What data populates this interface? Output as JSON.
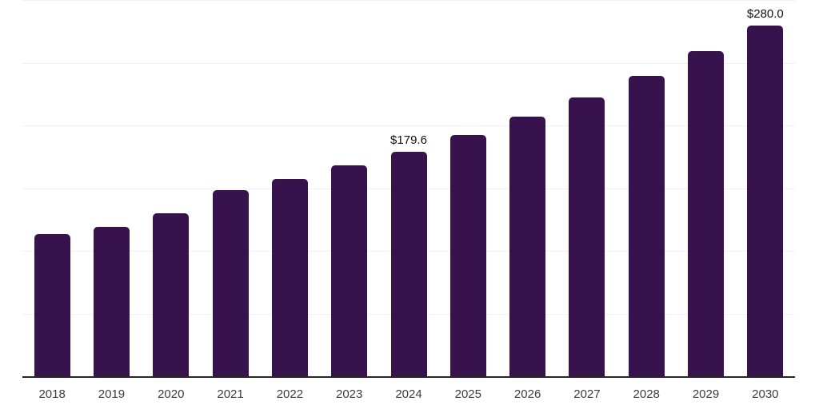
{
  "chart_data": {
    "type": "bar",
    "categories": [
      "2018",
      "2019",
      "2020",
      "2021",
      "2022",
      "2023",
      "2024",
      "2025",
      "2026",
      "2027",
      "2028",
      "2029",
      "2030"
    ],
    "values": [
      114.1,
      119.9,
      130.6,
      149.1,
      158.0,
      168.8,
      179.6,
      193.3,
      207.5,
      222.8,
      240.3,
      259.9,
      280.0
    ],
    "data_labels": [
      "",
      "",
      "",
      "",
      "",
      "",
      "$179.6",
      "",
      "",
      "",
      "",
      "",
      "$280.0"
    ],
    "title": "",
    "xlabel": "",
    "ylabel": "",
    "ylim": [
      0,
      300
    ],
    "y_gridline_interval": 50,
    "y_tick_labels_visible": false,
    "grid": true,
    "legend_position": "none",
    "bar_color": "#37124d",
    "gridline_color": "#f1f1f1",
    "axis_line_color": "#262626",
    "tick_label_color": "#3c3c3c",
    "data_label_color": "#111111",
    "background_color": "#ffffff"
  }
}
